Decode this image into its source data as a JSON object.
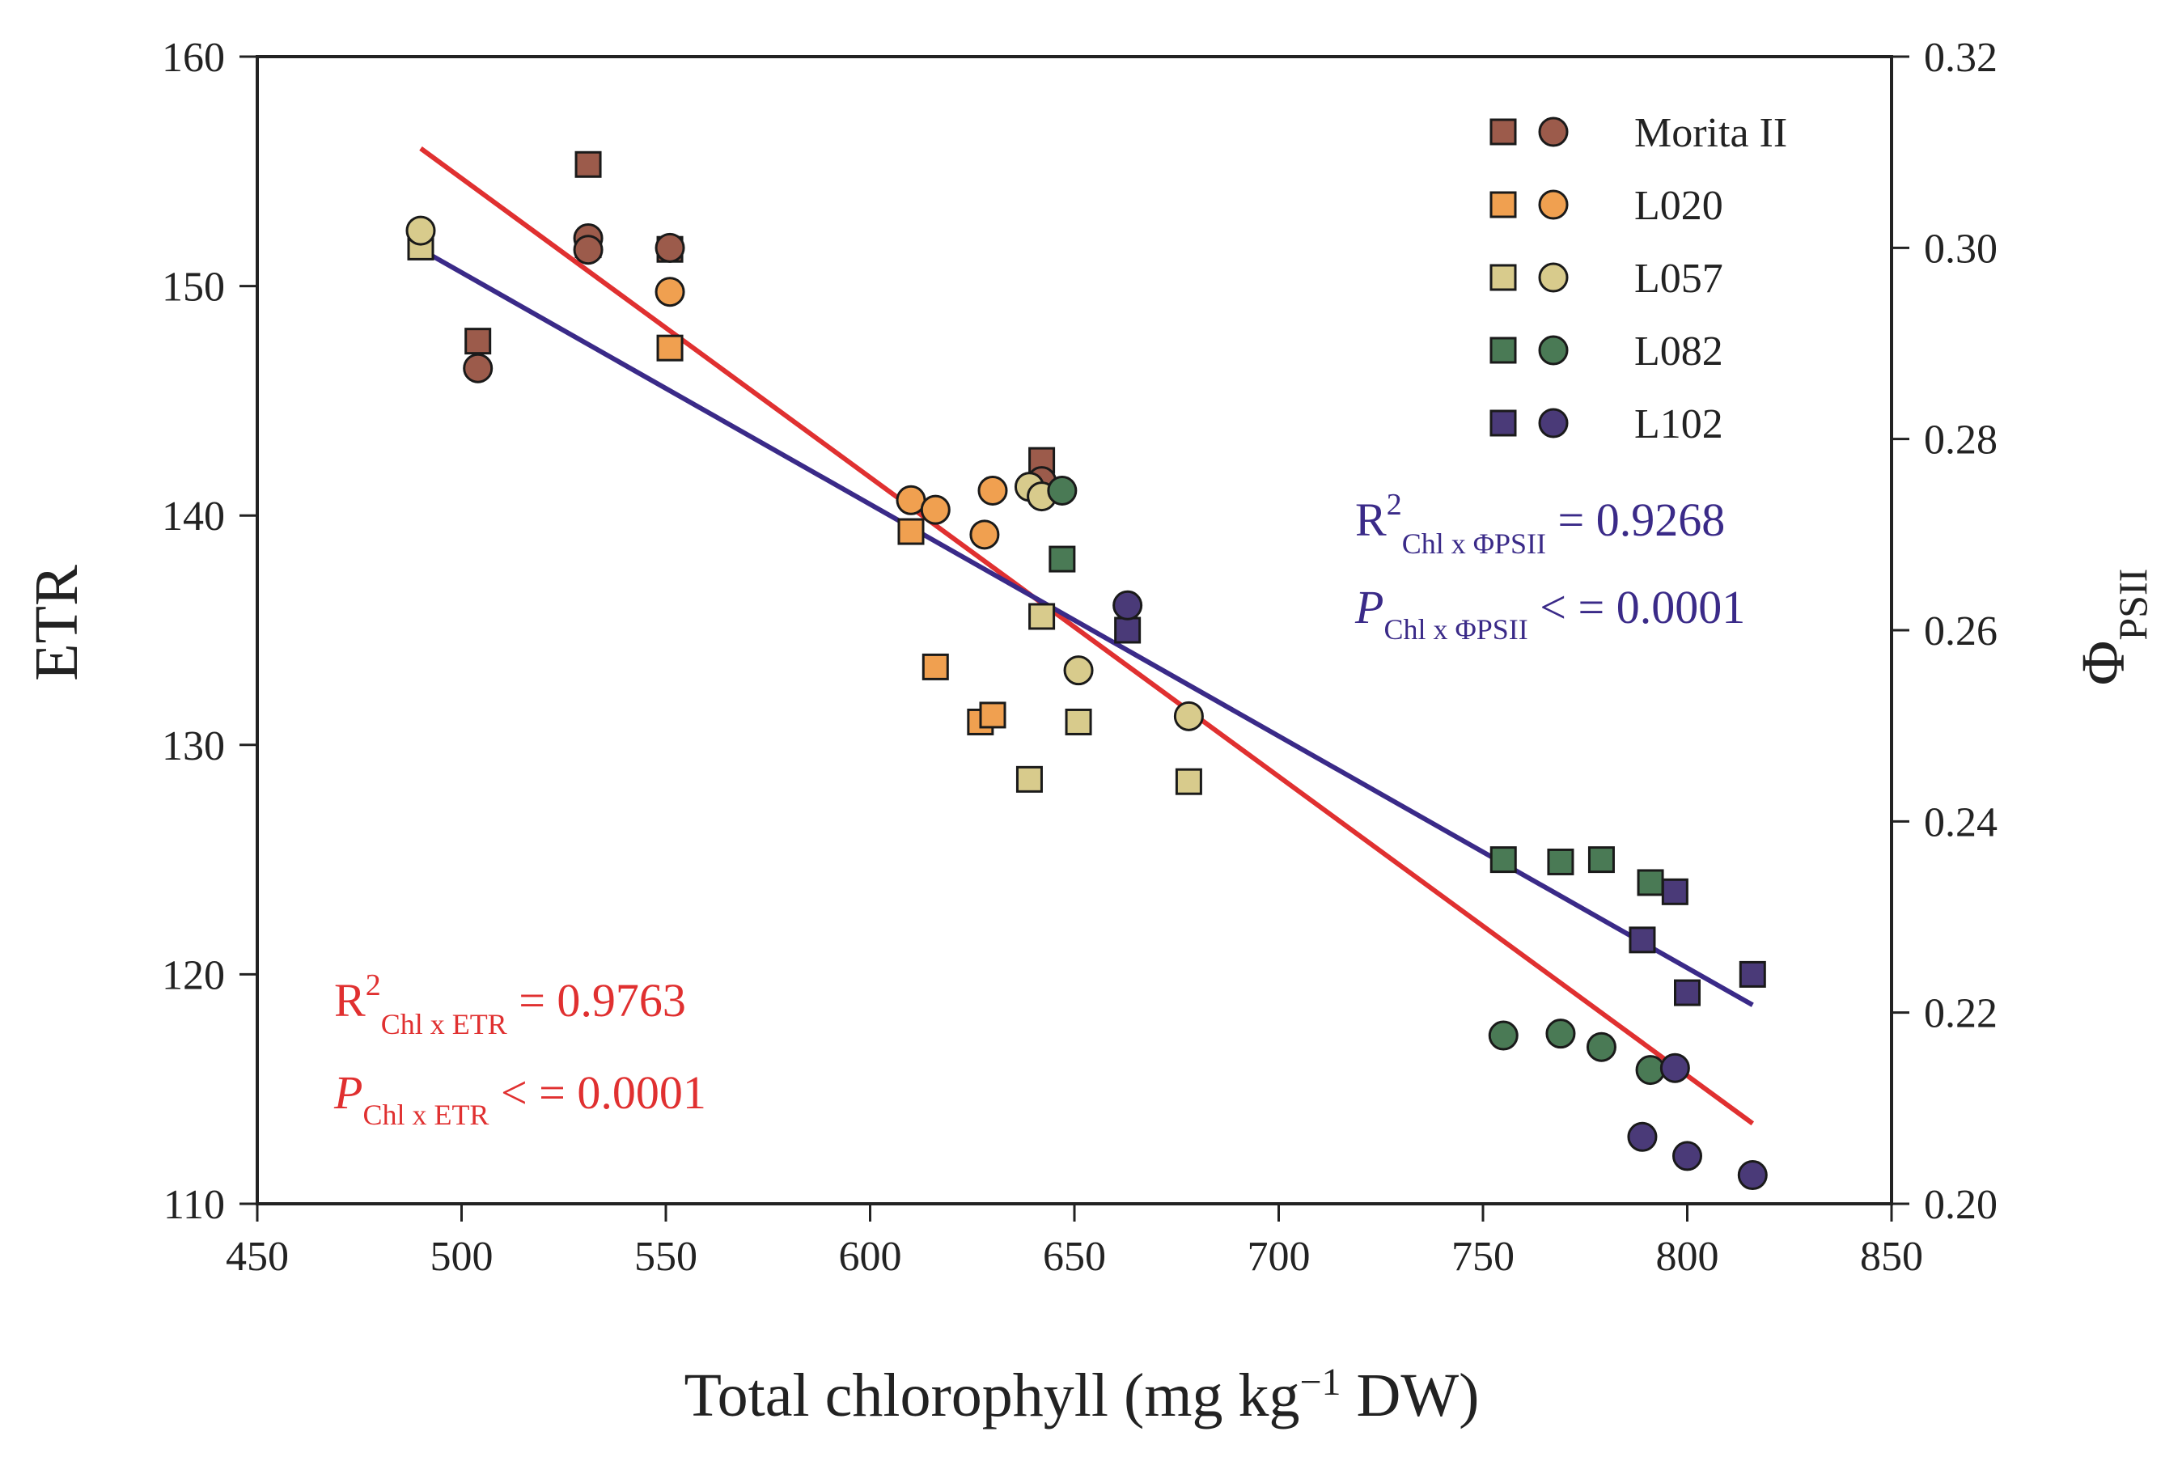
{
  "chart_data": {
    "type": "scatter",
    "xlabel": "Total chlorophyll (mg kg",
    "xlabel_sup": "−1",
    "xlabel_tail": " DW)",
    "ylabel": "ETR",
    "y2label_main": "Φ",
    "y2label_sub": "PSII",
    "xlim": [
      450,
      850
    ],
    "ylim": [
      110,
      160
    ],
    "y2lim": [
      0.2,
      0.32
    ],
    "x_ticks": [
      "450",
      "500",
      "550",
      "600",
      "650",
      "700",
      "750",
      "800",
      "850"
    ],
    "y_ticks": [
      "110",
      "120",
      "130",
      "140",
      "150",
      "160"
    ],
    "y2_ticks": [
      "0.20",
      "0.22",
      "0.24",
      "0.26",
      "0.28",
      "0.30",
      "0.32"
    ],
    "legend": {
      "placement": "top-right",
      "entries": [
        {
          "name": "Morita II",
          "color": "#9c5b4b"
        },
        {
          "name": "L020",
          "color": "#f0a050"
        },
        {
          "name": "L057",
          "color": "#d8cb8c"
        },
        {
          "name": "L082",
          "color": "#4a7a55"
        },
        {
          "name": "L102",
          "color": "#4a3a78"
        }
      ]
    },
    "series": [
      {
        "name": "Morita II",
        "color": "#9c5b4b",
        "etr_squares": [
          [
            490,
            152
          ],
          [
            504,
            147.6
          ],
          [
            531,
            155.3
          ],
          [
            531,
            151.8
          ],
          [
            551,
            151.6
          ],
          [
            642,
            142.4
          ]
        ],
        "phipsii_circles": [
          [
            504,
            0.2874
          ],
          [
            531,
            0.301
          ],
          [
            531,
            0.2998
          ],
          [
            551,
            0.3
          ],
          [
            642,
            0.2756
          ]
        ]
      },
      {
        "name": "L020",
        "color": "#f0a050",
        "etr_squares": [
          [
            551,
            147.3
          ],
          [
            610,
            139.3
          ],
          [
            616,
            133.4
          ],
          [
            627,
            131
          ],
          [
            630,
            131.3
          ]
        ],
        "phipsii_circles": [
          [
            551,
            0.2954
          ],
          [
            610,
            0.2736
          ],
          [
            616,
            0.2726
          ],
          [
            628,
            0.27
          ],
          [
            630,
            0.2746
          ]
        ]
      },
      {
        "name": "L057",
        "color": "#d8cb8c",
        "etr_squares": [
          [
            490,
            151.7
          ],
          [
            639,
            128.5
          ],
          [
            642,
            135.6
          ],
          [
            651,
            131
          ],
          [
            678,
            128.4
          ]
        ],
        "phipsii_circles": [
          [
            490,
            0.3018
          ],
          [
            639,
            0.275
          ],
          [
            642,
            0.274
          ],
          [
            651,
            0.2558
          ],
          [
            678,
            0.251
          ]
        ]
      },
      {
        "name": "L082",
        "color": "#4a7a55",
        "etr_squares": [
          [
            647,
            138.1
          ],
          [
            755,
            125
          ],
          [
            769,
            124.9
          ],
          [
            779,
            125
          ],
          [
            791,
            124
          ]
        ],
        "phipsii_circles": [
          [
            647,
            0.2746
          ],
          [
            755,
            0.2176
          ],
          [
            769,
            0.2178
          ],
          [
            779,
            0.2164
          ],
          [
            791,
            0.214
          ]
        ]
      },
      {
        "name": "L102",
        "color": "#4a3a78",
        "etr_squares": [
          [
            663,
            135
          ],
          [
            789,
            121.5
          ],
          [
            797,
            123.6
          ],
          [
            800,
            119.2
          ],
          [
            816,
            120
          ]
        ],
        "phipsii_circles": [
          [
            663,
            0.2626
          ],
          [
            789,
            0.207
          ],
          [
            797,
            0.2142
          ],
          [
            800,
            0.205
          ],
          [
            816,
            0.203
          ]
        ]
      }
    ],
    "fits": [
      {
        "name": "ETR fit",
        "color": "#e03030",
        "axis": "left",
        "x": [
          490,
          816
        ],
        "y": [
          156,
          113.5
        ]
      },
      {
        "name": "ΦPSII fit",
        "color": "#3a2a88",
        "axis": "right",
        "x": [
          491,
          816
        ],
        "y": [
          0.2996,
          0.2208
        ]
      }
    ],
    "annotations": {
      "phipsii": {
        "color": "#3a2a88",
        "r_label": "R",
        "r_sup": "2",
        "r_sub": "Chl x ΦPSII",
        "r_value": " = 0.9268",
        "p_label": "P",
        "p_sub": "Chl x ΦPSII",
        "p_value": " < = 0.0001"
      },
      "etr": {
        "color": "#e03030",
        "r_label": "R",
        "r_sup": "2",
        "r_sub": "Chl x ETR",
        "r_value": " = 0.9763",
        "p_label": "P",
        "p_sub": "Chl x ETR",
        "p_value": " < = 0.0001"
      }
    }
  }
}
